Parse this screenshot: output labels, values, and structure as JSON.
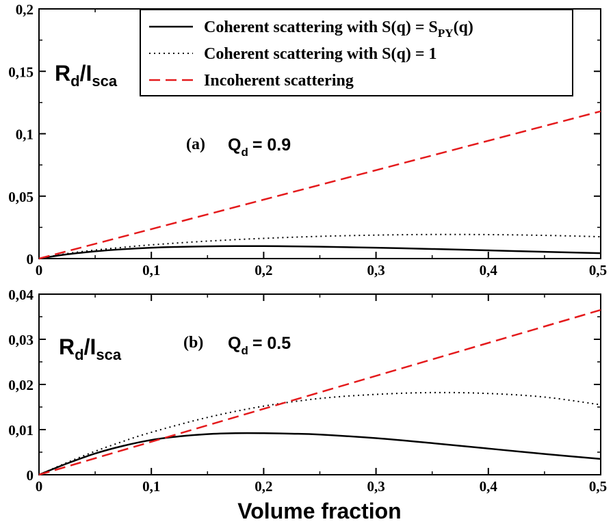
{
  "chart_data": [
    {
      "type": "line",
      "panel": "(a)",
      "annotation_label": "Q",
      "annotation_sub": "d",
      "annotation_value": "= 0.9",
      "ylabel_main": "R",
      "ylabel_sub1": "d",
      "ylabel_mid": "/I",
      "ylabel_sub2": "sca",
      "xlim": [
        0,
        0.5
      ],
      "ylim": [
        0,
        0.2
      ],
      "xticks": [
        "0",
        "0,1",
        "0,2",
        "0,3",
        "0,4",
        "0,5"
      ],
      "yticks": [
        "0",
        "0,05",
        "0,1",
        "0,15",
        "0,2"
      ],
      "series": [
        {
          "name": "Coherent scattering with S(q) = S_PY(q)",
          "style": "solid",
          "color": "#000000",
          "x": [
            0,
            0.025,
            0.05,
            0.075,
            0.1,
            0.125,
            0.15,
            0.175,
            0.2,
            0.225,
            0.25,
            0.3,
            0.35,
            0.4,
            0.45,
            0.5
          ],
          "y": [
            0,
            0.0034,
            0.0058,
            0.0075,
            0.0087,
            0.0094,
            0.0098,
            0.01,
            0.01,
            0.0098,
            0.0095,
            0.0087,
            0.0077,
            0.0066,
            0.0054,
            0.0043
          ]
        },
        {
          "name": "Coherent scattering with S(q) = 1",
          "style": "dotted",
          "color": "#000000",
          "x": [
            0,
            0.025,
            0.05,
            0.075,
            0.1,
            0.15,
            0.2,
            0.25,
            0.3,
            0.35,
            0.4,
            0.45,
            0.5
          ],
          "y": [
            0,
            0.004,
            0.0068,
            0.009,
            0.011,
            0.014,
            0.0162,
            0.0178,
            0.0188,
            0.0193,
            0.0192,
            0.0186,
            0.0175
          ]
        },
        {
          "name": "Incoherent scattering",
          "style": "dashed",
          "color": "#e41a1c",
          "x": [
            0,
            0.5
          ],
          "y": [
            0,
            0.118
          ]
        }
      ]
    },
    {
      "type": "line",
      "panel": "(b)",
      "annotation_label": "Q",
      "annotation_sub": "d",
      "annotation_value": "= 0.5",
      "ylabel_main": "R",
      "ylabel_sub1": "d",
      "ylabel_mid": "/I",
      "ylabel_sub2": "sca",
      "xlabel": "Volume fraction",
      "xlim": [
        0,
        0.5
      ],
      "ylim": [
        0,
        0.04
      ],
      "xticks": [
        "0",
        "0,1",
        "0,2",
        "0,3",
        "0,4",
        "0,5"
      ],
      "yticks": [
        "0",
        "0,01",
        "0,02",
        "0,03",
        "0,04"
      ],
      "series": [
        {
          "name": "Coherent scattering with S(q) = S_PY(q)",
          "style": "solid",
          "color": "#000000",
          "x": [
            0,
            0.025,
            0.05,
            0.075,
            0.1,
            0.125,
            0.15,
            0.175,
            0.2,
            0.225,
            0.25,
            0.3,
            0.35,
            0.4,
            0.45,
            0.5
          ],
          "y": [
            0,
            0.0025,
            0.0047,
            0.0064,
            0.0077,
            0.0085,
            0.009,
            0.0092,
            0.0092,
            0.0091,
            0.0089,
            0.0081,
            0.007,
            0.0058,
            0.0046,
            0.0035
          ]
        },
        {
          "name": "Coherent scattering with S(q) = 1",
          "style": "dotted",
          "color": "#000000",
          "x": [
            0,
            0.025,
            0.05,
            0.075,
            0.1,
            0.15,
            0.2,
            0.25,
            0.3,
            0.35,
            0.4,
            0.45,
            0.5
          ],
          "y": [
            0,
            0.0027,
            0.0052,
            0.0074,
            0.0094,
            0.0127,
            0.0152,
            0.0169,
            0.0178,
            0.0182,
            0.018,
            0.0172,
            0.0155
          ]
        },
        {
          "name": "Incoherent scattering",
          "style": "dashed",
          "color": "#e41a1c",
          "x": [
            0,
            0.5
          ],
          "y": [
            0,
            0.0365
          ]
        }
      ]
    }
  ],
  "legend": {
    "entries": [
      {
        "style": "solid",
        "color": "#000000",
        "text": "Coherent scattering with S(q) = S",
        "sub": "PY",
        "tail": "(q)"
      },
      {
        "style": "dotted",
        "color": "#000000",
        "text": "Coherent scattering with S(q) = 1",
        "sub": "",
        "tail": ""
      },
      {
        "style": "dashed",
        "color": "#e41a1c",
        "text": "Incoherent scattering",
        "sub": "",
        "tail": ""
      }
    ]
  }
}
